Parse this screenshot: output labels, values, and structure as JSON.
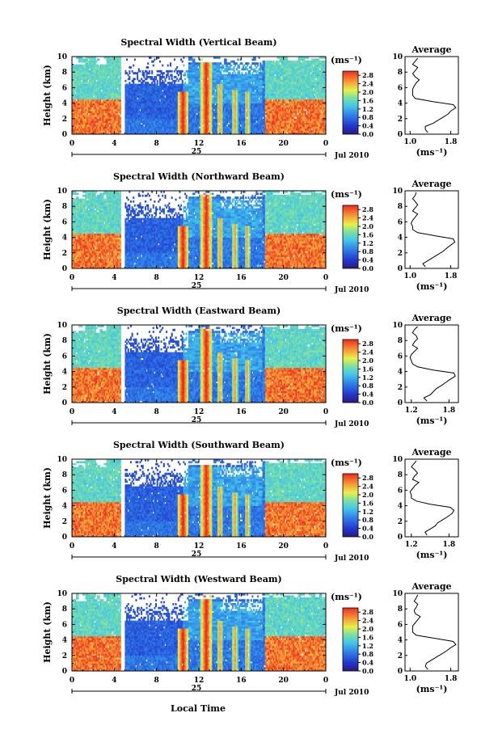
{
  "figure": {
    "xlabel": "Local Time",
    "date_label": "Jul 2010",
    "day_label": "25",
    "colorbar_unit": "(ms⁻¹)",
    "profile_title": "Average",
    "profile_xlabel": "(ms⁻¹)"
  },
  "chart_data": [
    {
      "type": "heatmap",
      "title": "Spectral Width (Vertical Beam)",
      "ylabel": "Height (km)",
      "x_ticks": [
        "0",
        "4",
        "8",
        "12",
        "16",
        "20",
        "0"
      ],
      "y_ticks": [
        "0",
        "2",
        "4",
        "6",
        "8",
        "10"
      ],
      "xlim": [
        0,
        24
      ],
      "ylim": [
        0,
        10
      ],
      "colorbar": {
        "min": 0.0,
        "max": 3.0,
        "ticks": [
          "0.0",
          "0.4",
          "0.8",
          "1.2",
          "1.6",
          "2.0",
          "2.4",
          "2.8"
        ]
      },
      "profile": {
        "title": "Average",
        "xlim": [
          0.9,
          1.95
        ],
        "x_ticks": [
          "1.0",
          "1.8"
        ],
        "height": [
          0.2,
          0.6,
          1.0,
          1.4,
          1.8,
          2.2,
          2.6,
          3.0,
          3.4,
          3.8,
          4.2,
          4.6,
          5.0,
          5.4,
          5.8,
          6.2,
          6.6,
          7.0,
          7.4,
          7.8,
          8.2,
          8.6,
          9.0,
          9.4,
          9.8
        ],
        "values": [
          1.35,
          1.3,
          1.3,
          1.45,
          1.55,
          1.65,
          1.75,
          1.8,
          1.9,
          1.85,
          1.45,
          1.1,
          1.05,
          1.05,
          1.05,
          1.08,
          1.12,
          1.18,
          1.1,
          1.05,
          1.1,
          1.15,
          1.05,
          1.1,
          1.15
        ]
      }
    },
    {
      "type": "heatmap",
      "title": "Spectral Width (Northward Beam)",
      "ylabel": "Height (km)",
      "x_ticks": [
        "0",
        "4",
        "8",
        "12",
        "16",
        "20",
        "0"
      ],
      "y_ticks": [
        "0",
        "2",
        "4",
        "6",
        "8",
        "10"
      ],
      "xlim": [
        0,
        24
      ],
      "ylim": [
        0,
        10
      ],
      "colorbar": {
        "min": 0.0,
        "max": 3.0,
        "ticks": [
          "0.0",
          "0.4",
          "0.8",
          "1.2",
          "1.6",
          "2.0",
          "2.4",
          "2.8"
        ]
      },
      "profile": {
        "title": "Average",
        "xlim": [
          0.9,
          1.95
        ],
        "x_ticks": [
          "1.0",
          "1.8"
        ],
        "height": [
          0.2,
          0.6,
          1.0,
          1.4,
          1.8,
          2.2,
          2.6,
          3.0,
          3.4,
          3.8,
          4.2,
          4.6,
          5.0,
          5.4,
          5.8,
          6.2,
          6.6,
          7.0,
          7.4,
          7.8,
          8.2,
          8.6,
          9.0,
          9.4,
          9.8
        ],
        "values": [
          1.3,
          1.25,
          1.35,
          1.45,
          1.55,
          1.65,
          1.72,
          1.8,
          1.88,
          1.85,
          1.5,
          1.15,
          1.05,
          1.05,
          1.02,
          1.05,
          1.1,
          1.15,
          1.05,
          1.1,
          1.15,
          1.1,
          1.05,
          1.1,
          1.12
        ]
      }
    },
    {
      "type": "heatmap",
      "title": "Spectral Width (Eastward Beam)",
      "ylabel": "Height (km)",
      "x_ticks": [
        "0",
        "4",
        "8",
        "12",
        "16",
        "20",
        "0"
      ],
      "y_ticks": [
        "0",
        "2",
        "4",
        "6",
        "8",
        "10"
      ],
      "xlim": [
        0,
        24
      ],
      "ylim": [
        0,
        10
      ],
      "colorbar": {
        "min": 0.0,
        "max": 3.0,
        "ticks": [
          "0.0",
          "0.4",
          "0.8",
          "1.2",
          "1.6",
          "2.0",
          "2.4",
          "2.8"
        ]
      },
      "profile": {
        "title": "Average",
        "xlim": [
          1.1,
          1.95
        ],
        "x_ticks": [
          "1.2",
          "1.8"
        ],
        "height": [
          0.2,
          0.6,
          1.0,
          1.4,
          1.8,
          2.2,
          2.6,
          3.0,
          3.4,
          3.8,
          4.2,
          4.6,
          5.0,
          5.4,
          5.8,
          6.2,
          6.6,
          7.0,
          7.4,
          7.8,
          8.2,
          8.6,
          9.0,
          9.4,
          9.8
        ],
        "values": [
          1.45,
          1.4,
          1.5,
          1.55,
          1.6,
          1.68,
          1.75,
          1.82,
          1.9,
          1.88,
          1.55,
          1.3,
          1.22,
          1.2,
          1.18,
          1.2,
          1.25,
          1.3,
          1.22,
          1.25,
          1.3,
          1.28,
          1.22,
          1.25,
          1.3
        ]
      }
    },
    {
      "type": "heatmap",
      "title": "Spectral Width (Southward Beam)",
      "ylabel": "Height (km)",
      "x_ticks": [
        "0",
        "4",
        "8",
        "12",
        "16",
        "20",
        "0"
      ],
      "y_ticks": [
        "0",
        "2",
        "4",
        "6",
        "8",
        "10"
      ],
      "xlim": [
        0,
        24
      ],
      "ylim": [
        0,
        10
      ],
      "colorbar": {
        "min": 0.0,
        "max": 3.0,
        "ticks": [
          "0.0",
          "0.4",
          "0.8",
          "1.2",
          "1.6",
          "2.0",
          "2.4",
          "2.8"
        ]
      },
      "profile": {
        "title": "Average",
        "xlim": [
          1.1,
          1.95
        ],
        "x_ticks": [
          "1.2",
          "1.8"
        ],
        "height": [
          0.2,
          0.6,
          1.0,
          1.4,
          1.8,
          2.2,
          2.6,
          3.0,
          3.4,
          3.8,
          4.2,
          4.6,
          5.0,
          5.4,
          5.8,
          6.2,
          6.6,
          7.0,
          7.4,
          7.8,
          8.2,
          8.6,
          9.0,
          9.4,
          9.8
        ],
        "values": [
          1.45,
          1.42,
          1.5,
          1.58,
          1.62,
          1.7,
          1.78,
          1.85,
          1.88,
          1.82,
          1.5,
          1.28,
          1.2,
          1.2,
          1.18,
          1.22,
          1.26,
          1.32,
          1.22,
          1.25,
          1.3,
          1.26,
          1.2,
          1.24,
          1.28
        ]
      }
    },
    {
      "type": "heatmap",
      "title": "Spectral Width (Westward Beam)",
      "ylabel": "Height (km)",
      "x_ticks": [
        "0",
        "4",
        "8",
        "12",
        "16",
        "20",
        "0"
      ],
      "y_ticks": [
        "0",
        "2",
        "4",
        "6",
        "8",
        "10"
      ],
      "xlim": [
        0,
        24
      ],
      "ylim": [
        0,
        10
      ],
      "colorbar": {
        "min": 0.0,
        "max": 3.0,
        "ticks": [
          "0.0",
          "0.4",
          "0.8",
          "1.2",
          "1.6",
          "2.0",
          "2.4",
          "2.8"
        ]
      },
      "profile": {
        "title": "Average",
        "xlim": [
          0.9,
          1.95
        ],
        "x_ticks": [
          "1.0",
          "1.8"
        ],
        "height": [
          0.2,
          0.6,
          1.0,
          1.4,
          1.8,
          2.2,
          2.6,
          3.0,
          3.4,
          3.8,
          4.2,
          4.6,
          5.0,
          5.4,
          5.8,
          6.2,
          6.6,
          7.0,
          7.4,
          7.8,
          8.2,
          8.6,
          9.0,
          9.4,
          9.8
        ],
        "values": [
          1.35,
          1.3,
          1.32,
          1.42,
          1.52,
          1.62,
          1.72,
          1.8,
          1.9,
          1.85,
          1.5,
          1.12,
          1.05,
          1.05,
          1.05,
          1.1,
          1.15,
          1.2,
          1.1,
          1.08,
          1.12,
          1.15,
          1.08,
          1.12,
          1.15
        ]
      }
    }
  ]
}
